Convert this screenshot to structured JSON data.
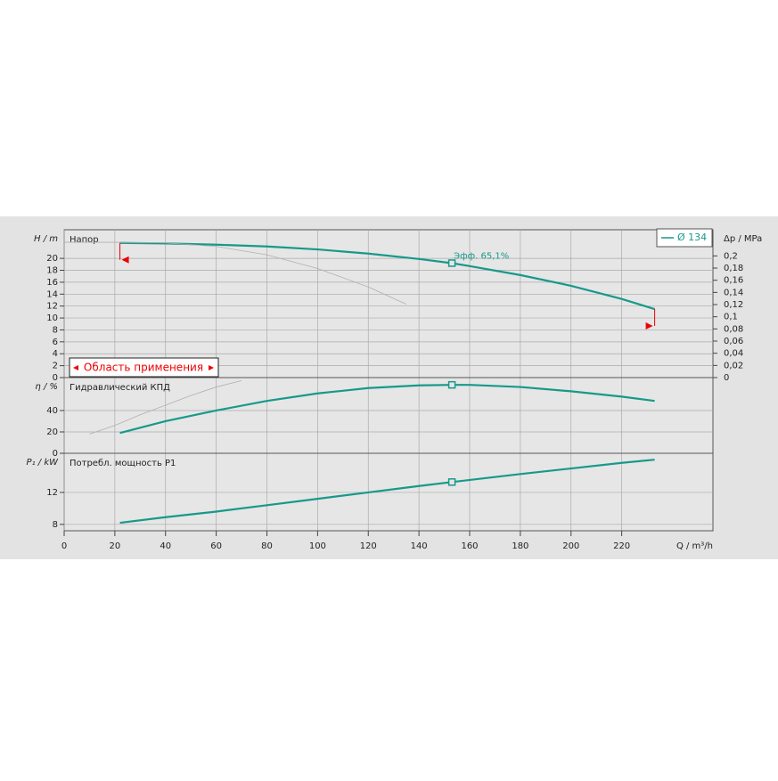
{
  "chart_data": [
    {
      "type": "line",
      "title": "Напор",
      "ylabel": "H / m",
      "y2label": "Δp / MPa",
      "ylim": [
        0,
        24.8
      ],
      "yticks": [
        0,
        2,
        4,
        6,
        8,
        10,
        12,
        14,
        16,
        18,
        20
      ],
      "y2lim": [
        0,
        0.243
      ],
      "y2ticks": [
        0,
        {
          "value": 0.02,
          "label": "0,02"
        },
        {
          "value": 0.04,
          "label": "0,04"
        },
        {
          "value": 0.06,
          "label": "0,06"
        },
        {
          "value": 0.08,
          "label": "0,08"
        },
        {
          "value": 0.1,
          "label": "0,1"
        },
        {
          "value": 0.12,
          "label": "0,12"
        },
        {
          "value": 0.14,
          "label": "0,14"
        },
        {
          "value": 0.16,
          "label": "0,16"
        },
        {
          "value": 0.18,
          "label": "0,18"
        },
        {
          "value": 0.2,
          "label": "0,2"
        }
      ],
      "grid": true,
      "legend": "upper right",
      "annotation": "Эфф.  65,1%",
      "range_label": "Область применения",
      "application_range": [
        22,
        233
      ],
      "operating_point": {
        "x": 153,
        "y": 19.2
      },
      "series": [
        {
          "name": "Ø 134",
          "color": "#17998a",
          "x": [
            22,
            40,
            60,
            80,
            100,
            120,
            140,
            153,
            160,
            180,
            200,
            220,
            233
          ],
          "values": [
            22.6,
            22.5,
            22.3,
            22.0,
            21.5,
            20.8,
            19.9,
            19.2,
            18.7,
            17.2,
            15.4,
            13.2,
            11.5
          ]
        },
        {
          "color": "#b0b0b0",
          "x": [
            0,
            20,
            40,
            60,
            80,
            100,
            120,
            135
          ],
          "values": [
            22.7,
            22.7,
            22.6,
            22.0,
            20.6,
            18.3,
            15.2,
            12.3
          ]
        }
      ]
    },
    {
      "type": "line",
      "title": "Гидравлический КПД",
      "ylabel": "η / %",
      "ylim": [
        0,
        70.8
      ],
      "yticks": [
        0,
        20,
        40
      ],
      "grid": true,
      "operating_point": {
        "x": 153,
        "y": 64
      },
      "series": [
        {
          "color": "#17998a",
          "x": [
            22,
            40,
            60,
            80,
            100,
            120,
            140,
            153,
            160,
            180,
            200,
            220,
            233
          ],
          "values": [
            19,
            30,
            40,
            49,
            56,
            61,
            63.5,
            64,
            64,
            62,
            58,
            53,
            49
          ]
        },
        {
          "color": "#b0b0b0",
          "x": [
            10,
            20,
            30,
            40,
            50,
            60,
            70
          ],
          "values": [
            18,
            26,
            36,
            45,
            54,
            62,
            68
          ]
        }
      ]
    },
    {
      "type": "line",
      "title": "Потребл. мощность P1",
      "ylabel": "P₁ / kW",
      "xlabel": "Q / m³/h",
      "ylim": [
        7.2,
        16.9
      ],
      "yticks": [
        8,
        12
      ],
      "grid": true,
      "xlim": [
        0,
        256
      ],
      "xticks": [
        0,
        20,
        40,
        60,
        80,
        100,
        120,
        140,
        160,
        180,
        200,
        220
      ],
      "operating_point": {
        "x": 153,
        "y": 13.3
      },
      "series": [
        {
          "color": "#17998a",
          "x": [
            22,
            40,
            60,
            80,
            100,
            120,
            140,
            153,
            180,
            200,
            220,
            233
          ],
          "values": [
            8.2,
            8.9,
            9.6,
            10.4,
            11.2,
            12.0,
            12.8,
            13.3,
            14.3,
            15.0,
            15.7,
            16.1
          ]
        }
      ]
    }
  ]
}
